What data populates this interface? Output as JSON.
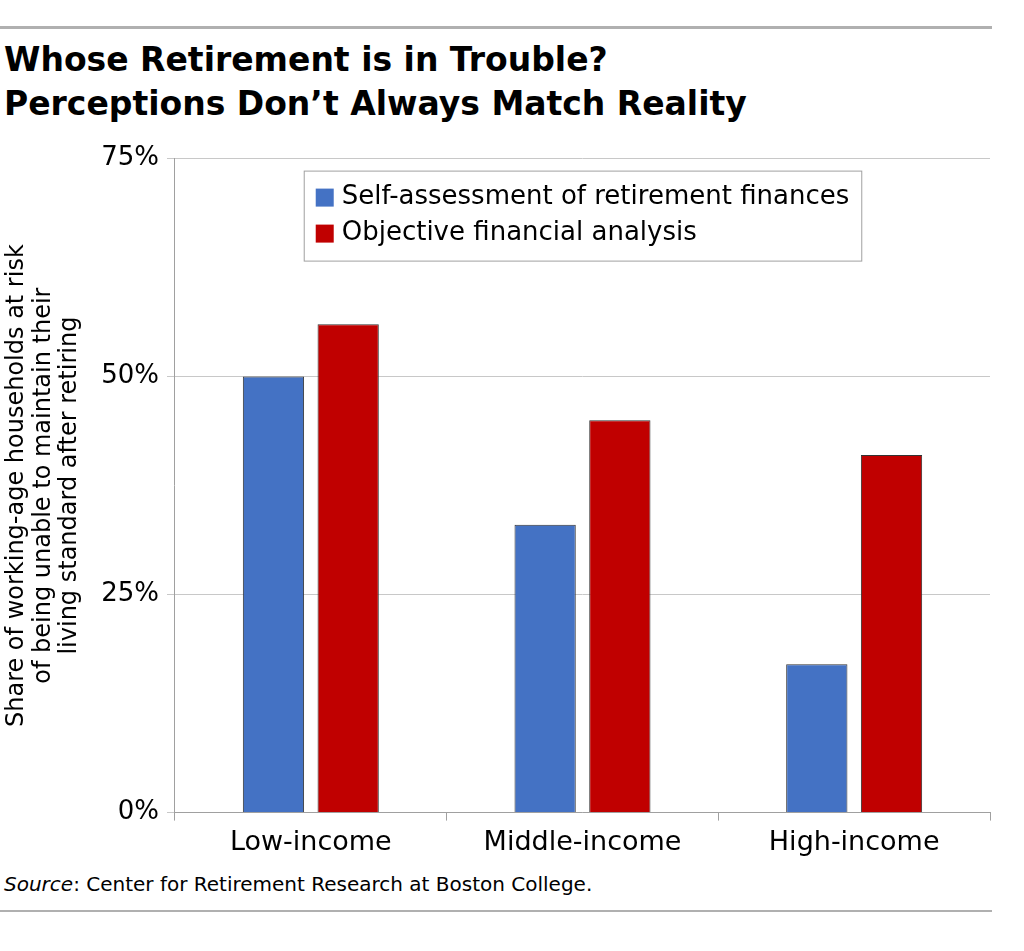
{
  "chart_data": {
    "type": "bar",
    "title": [
      "Whose Retirement is in Trouble?",
      "Perceptions Don’t Always Match Reality"
    ],
    "y_label": [
      "Share of working-age households at risk",
      "of being unable to maintain their",
      "living standard after retiring"
    ],
    "categories": [
      "Low-income",
      "Middle-income",
      "High-income"
    ],
    "series": [
      {
        "name": "Self-assessment of retirement finances",
        "color": "#4472c4",
        "values": [
          50,
          33,
          17
        ]
      },
      {
        "name": "Objective financial analysis",
        "color": "#c00000",
        "values": [
          56,
          45,
          41
        ]
      }
    ],
    "ylim": [
      0,
      75
    ],
    "yticks": [
      {
        "value": 0,
        "label": "0%"
      },
      {
        "value": 25,
        "label": "25%"
      },
      {
        "value": 50,
        "label": "50%"
      },
      {
        "value": 75,
        "label": "75%"
      }
    ],
    "grid": true,
    "legend": "top",
    "source": "Source: Center for Retirement Research at Boston College."
  }
}
